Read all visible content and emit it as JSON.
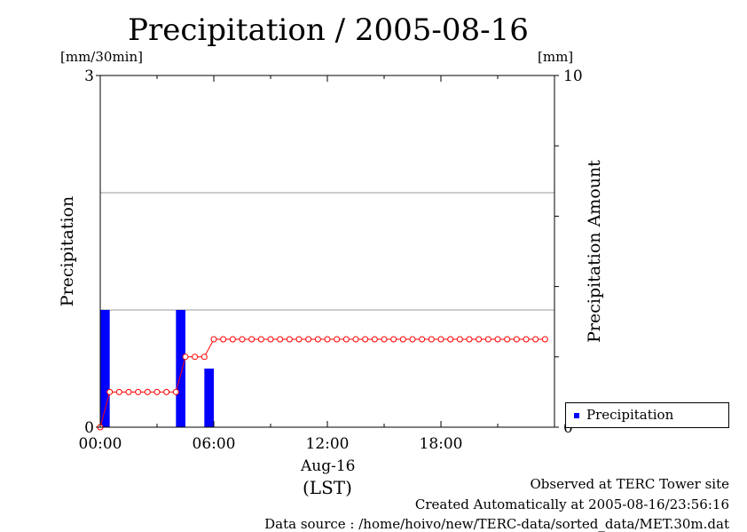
{
  "title": "Precipitation / 2005-08-16",
  "left_unit": "[mm/30min]",
  "right_unit": "[mm]",
  "date_label": "Aug-16",
  "tz_label": "(LST)",
  "footer": {
    "site": "Observed at TERC Tower site",
    "created": "Created Automatically at 2005-08-16/23:56:16",
    "source": "Data source : /home/hoivo/new/TERC-data/sorted_data/MET.30m.dat"
  },
  "legend": {
    "label": "Precipitation"
  },
  "colors": {
    "bar": "#0000ff",
    "line": "#ff0000",
    "grid": "#999999"
  },
  "chart_data": {
    "type": "bar",
    "title": "Precipitation / 2005-08-16",
    "xlabel": "Aug-16 (LST)",
    "ylabel": "Precipitation",
    "ylabel_right": "Precipitation Amount",
    "xlim": [
      0,
      24
    ],
    "ylim": [
      0,
      3
    ],
    "ylim_right": [
      0,
      10
    ],
    "x_ticks": [
      "00:00",
      "06:00",
      "12:00",
      "18:00"
    ],
    "y_ticks": [
      "0",
      "3"
    ],
    "y_ticks_right": [
      "0",
      "10"
    ],
    "grid": true,
    "legend_position": "bottom-right",
    "series": [
      {
        "name": "Precipitation",
        "kind": "bar",
        "axis": "left",
        "bars": [
          {
            "time": "00:00",
            "value": 1
          },
          {
            "time": "04:00",
            "value": 1
          },
          {
            "time": "05:30",
            "value": 0.5
          }
        ]
      },
      {
        "kind": "line",
        "axis": "right",
        "markers": "open-circle",
        "points": [
          [
            0.0,
            0
          ],
          [
            0.5,
            1
          ],
          [
            1.0,
            1
          ],
          [
            1.5,
            1
          ],
          [
            2.0,
            1
          ],
          [
            2.5,
            1
          ],
          [
            3.0,
            1
          ],
          [
            3.5,
            1
          ],
          [
            4.0,
            1
          ],
          [
            4.5,
            2
          ],
          [
            5.0,
            2
          ],
          [
            5.5,
            2
          ],
          [
            6.0,
            2.5
          ],
          [
            6.5,
            2.5
          ],
          [
            7.0,
            2.5
          ],
          [
            7.5,
            2.5
          ],
          [
            8.0,
            2.5
          ],
          [
            8.5,
            2.5
          ],
          [
            9.0,
            2.5
          ],
          [
            9.5,
            2.5
          ],
          [
            10.0,
            2.5
          ],
          [
            10.5,
            2.5
          ],
          [
            11.0,
            2.5
          ],
          [
            11.5,
            2.5
          ],
          [
            12.0,
            2.5
          ],
          [
            12.5,
            2.5
          ],
          [
            13.0,
            2.5
          ],
          [
            13.5,
            2.5
          ],
          [
            14.0,
            2.5
          ],
          [
            14.5,
            2.5
          ],
          [
            15.0,
            2.5
          ],
          [
            15.5,
            2.5
          ],
          [
            16.0,
            2.5
          ],
          [
            16.5,
            2.5
          ],
          [
            17.0,
            2.5
          ],
          [
            17.5,
            2.5
          ],
          [
            18.0,
            2.5
          ],
          [
            18.5,
            2.5
          ],
          [
            19.0,
            2.5
          ],
          [
            19.5,
            2.5
          ],
          [
            20.0,
            2.5
          ],
          [
            20.5,
            2.5
          ],
          [
            21.0,
            2.5
          ],
          [
            21.5,
            2.5
          ],
          [
            22.0,
            2.5
          ],
          [
            22.5,
            2.5
          ],
          [
            23.0,
            2.5
          ],
          [
            23.5,
            2.5
          ]
        ]
      }
    ]
  }
}
